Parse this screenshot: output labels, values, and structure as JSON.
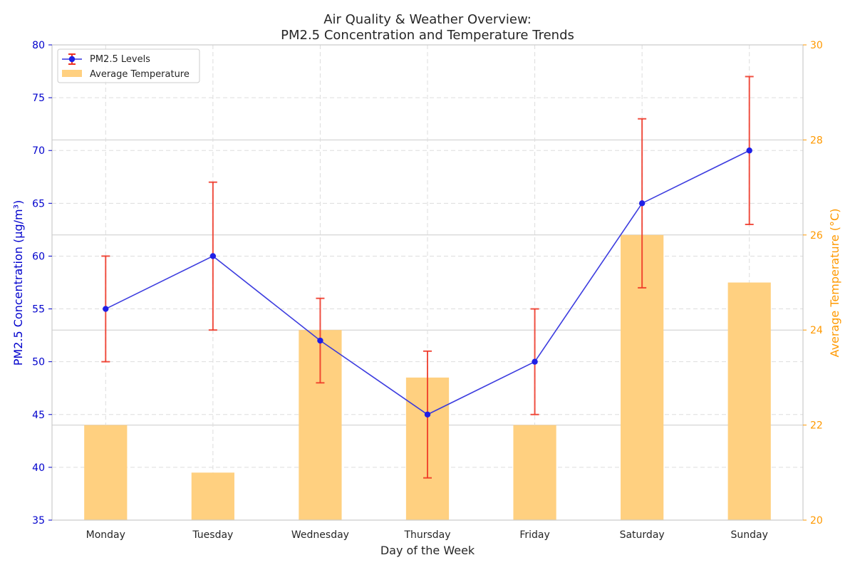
{
  "chart_data": {
    "type": "bar+line",
    "title": [
      "Air Quality & Weather Overview:",
      "PM2.5 Concentration and Temperature Trends"
    ],
    "xlabel": "Day of the Week",
    "ylabel_left": "PM2.5 Concentration (µg/m³)",
    "ylabel_right": "Average Temperature (°C)",
    "categories": [
      "Monday",
      "Tuesday",
      "Wednesday",
      "Thursday",
      "Friday",
      "Saturday",
      "Sunday"
    ],
    "ylim_left": [
      35,
      80
    ],
    "yticks_left": [
      35,
      40,
      45,
      50,
      55,
      60,
      65,
      70,
      75,
      80
    ],
    "ylim_right": [
      20,
      30
    ],
    "yticks_right": [
      20,
      22,
      24,
      26,
      28,
      30
    ],
    "grid": true,
    "legend_position": "upper-left",
    "series": [
      {
        "name": "PM2.5 Levels",
        "kind": "line",
        "axis": "left",
        "values": [
          55,
          60,
          52,
          45,
          50,
          65,
          70
        ],
        "error_low": [
          50,
          53,
          48,
          39,
          45,
          57,
          63
        ],
        "error_high": [
          60,
          67,
          56,
          51,
          55,
          73,
          77
        ]
      },
      {
        "name": "Average Temperature",
        "kind": "bar",
        "axis": "right",
        "values": [
          22,
          21,
          24,
          23,
          22,
          26,
          25
        ]
      }
    ],
    "colors": {
      "pm_line": "#3333dd",
      "pm_marker": "#1f1fe6",
      "error_bar": "#ee3322",
      "temp_bar": "#ffd080",
      "left_axis": "#0000cc",
      "right_axis": "#ff9900",
      "grid": "#dddddd"
    }
  }
}
